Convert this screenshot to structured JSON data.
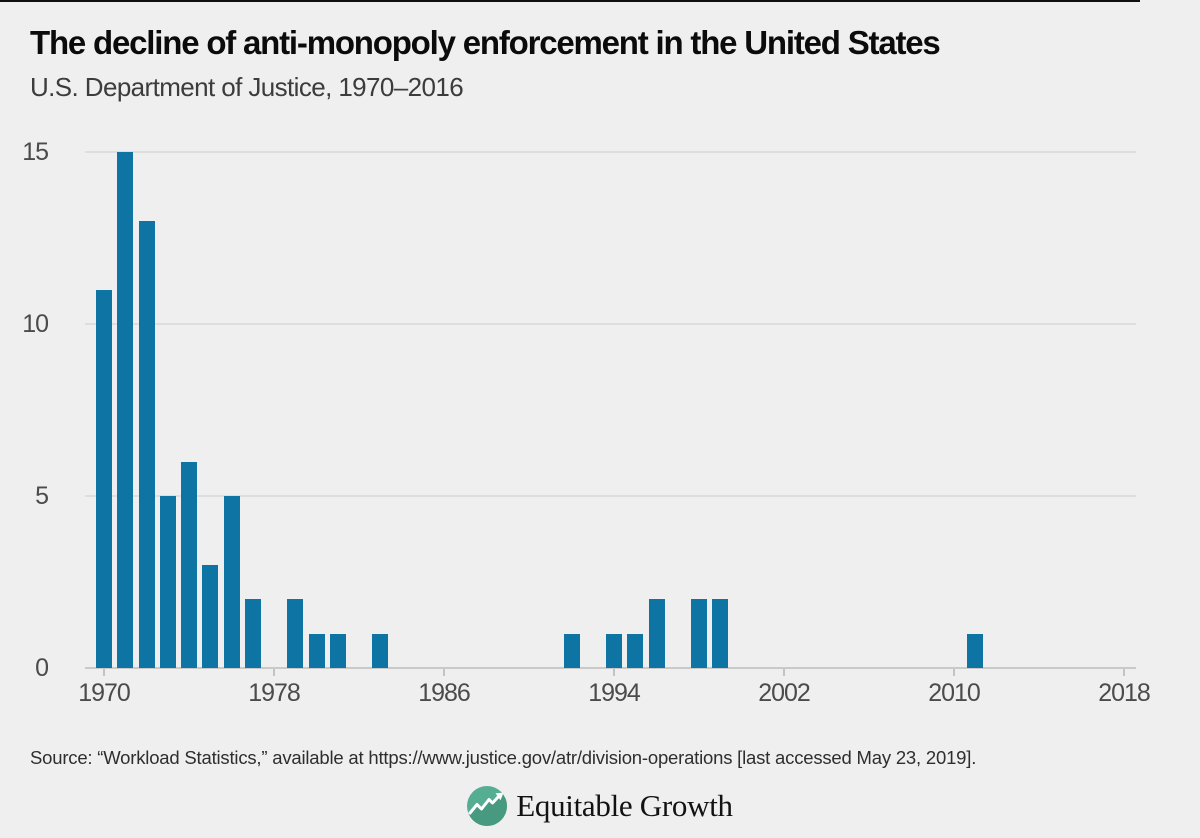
{
  "page": {
    "background_color": "#efefef",
    "top_rule_color": "#101010"
  },
  "header": {
    "title": "The decline of anti-monopoly enforcement in the United States",
    "subtitle": "U.S. Department of Justice, 1970–2016"
  },
  "chart_data": {
    "type": "bar",
    "title": "The decline of anti-monopoly enforcement in the United States",
    "subtitle": "U.S. Department of Justice, 1970–2016",
    "xlabel": "",
    "ylabel": "",
    "years": [
      1970,
      1971,
      1972,
      1973,
      1974,
      1975,
      1976,
      1977,
      1978,
      1979,
      1980,
      1981,
      1982,
      1983,
      1984,
      1985,
      1986,
      1987,
      1988,
      1989,
      1990,
      1991,
      1992,
      1993,
      1994,
      1995,
      1996,
      1997,
      1998,
      1999,
      2000,
      2001,
      2002,
      2003,
      2004,
      2005,
      2006,
      2007,
      2008,
      2009,
      2010,
      2011,
      2012,
      2013,
      2014,
      2015,
      2016
    ],
    "values": [
      11,
      15,
      13,
      5,
      6,
      3,
      5,
      2,
      0,
      2,
      1,
      1,
      0,
      1,
      0,
      0,
      0,
      0,
      0,
      0,
      0,
      0,
      1,
      0,
      1,
      1,
      2,
      0,
      2,
      2,
      0,
      0,
      0,
      0,
      0,
      0,
      0,
      0,
      0,
      0,
      0,
      1,
      0,
      0,
      0,
      0,
      0
    ],
    "x_ticks": [
      1970,
      1978,
      1986,
      1994,
      2002,
      2010,
      2018
    ],
    "y_ticks": [
      0,
      5,
      10,
      15
    ],
    "ylim": [
      0,
      15
    ],
    "xlim": [
      1969,
      2019
    ],
    "grid": true,
    "legend_position": "none",
    "bar_color": "#0e74a4",
    "gridline_color": "#dedede",
    "axis_line_color": "#c9c9c9",
    "tick_label_color": "#4b4b4b"
  },
  "footer": {
    "source": "Source: “Workload Statistics,” available at https://www.justice.gov/atr/division-operations [last accessed May 23, 2019].",
    "logo": {
      "text": "Equitable Growth",
      "icon": "growth-line-chart-icon",
      "circle_color": "#55ad92",
      "circle_shade_color": "#479a80",
      "line_color": "#ffffff"
    }
  }
}
